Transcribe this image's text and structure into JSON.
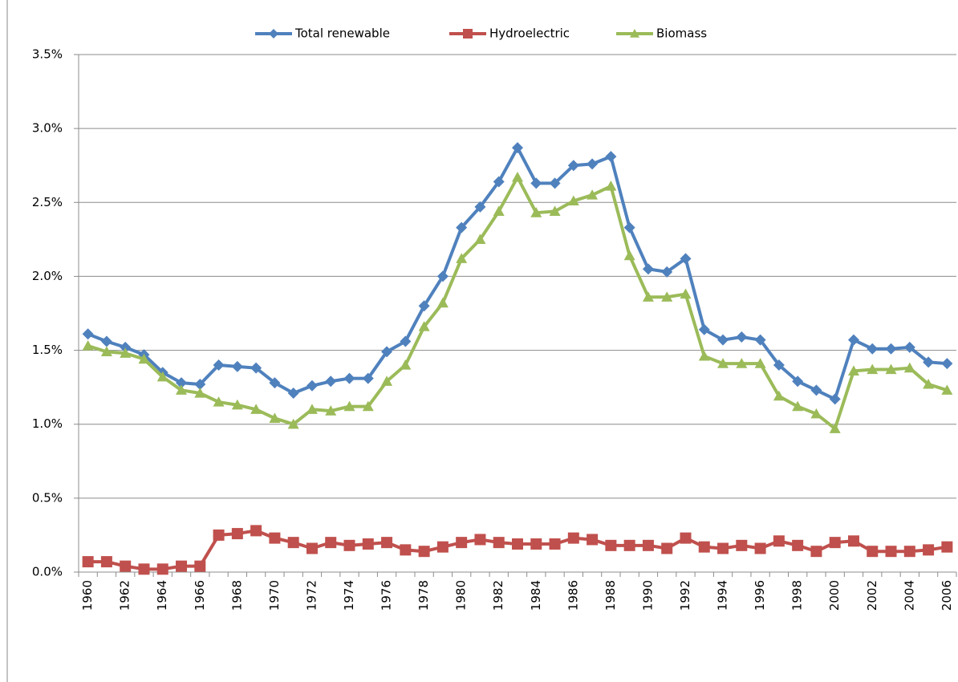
{
  "chart_data": {
    "type": "line",
    "categories": [
      "1960",
      null,
      "1962",
      null,
      "1964",
      null,
      "1966",
      null,
      "1968",
      null,
      "1970",
      null,
      "1972",
      null,
      "1974",
      null,
      "1976",
      null,
      "1978",
      null,
      "1980",
      null,
      "1982",
      null,
      "1984",
      null,
      "1986",
      null,
      "1988",
      null,
      "1990",
      null,
      "1992",
      null,
      "1994",
      null,
      "1996",
      null,
      "1998",
      null,
      "2000",
      null,
      "2002",
      null,
      "2004",
      null,
      "2006"
    ],
    "series": [
      {
        "name": "Total renewable",
        "color": "#4f81bd",
        "marker": "diamond",
        "values": [
          1.61,
          1.56,
          1.52,
          1.47,
          1.35,
          1.28,
          1.27,
          1.4,
          1.39,
          1.38,
          1.28,
          1.21,
          1.26,
          1.29,
          1.31,
          1.31,
          1.49,
          1.56,
          1.8,
          2.0,
          2.33,
          2.47,
          2.64,
          2.87,
          2.63,
          2.63,
          2.75,
          2.76,
          2.81,
          2.33,
          2.05,
          2.03,
          2.12,
          1.64,
          1.57,
          1.59,
          1.57,
          1.4,
          1.29,
          1.23,
          1.17,
          1.57,
          1.51,
          1.51,
          1.52,
          1.42,
          1.41
        ]
      },
      {
        "name": "Hydroelectric",
        "color": "#c0504d",
        "marker": "square",
        "values": [
          0.07,
          0.07,
          0.04,
          0.02,
          0.02,
          0.04,
          0.04,
          0.25,
          0.26,
          0.28,
          0.23,
          0.2,
          0.16,
          0.2,
          0.18,
          0.19,
          0.2,
          0.15,
          0.14,
          0.17,
          0.2,
          0.22,
          0.2,
          0.19,
          0.19,
          0.19,
          0.23,
          0.22,
          0.18,
          0.18,
          0.18,
          0.16,
          0.23,
          0.17,
          0.16,
          0.18,
          0.16,
          0.21,
          0.18,
          0.14,
          0.2,
          0.21,
          0.14,
          0.14,
          0.14,
          0.15,
          0.17
        ]
      },
      {
        "name": "Biomass",
        "color": "#9bbb59",
        "marker": "triangle",
        "values": [
          1.53,
          1.49,
          1.48,
          1.44,
          1.32,
          1.23,
          1.21,
          1.15,
          1.13,
          1.1,
          1.04,
          1.0,
          1.1,
          1.09,
          1.12,
          1.12,
          1.29,
          1.4,
          1.66,
          1.82,
          2.12,
          2.25,
          2.44,
          2.67,
          2.43,
          2.44,
          2.51,
          2.55,
          2.61,
          2.14,
          1.86,
          1.86,
          1.88,
          1.46,
          1.41,
          1.41,
          1.41,
          1.19,
          1.12,
          1.07,
          0.97,
          1.36,
          1.37,
          1.37,
          1.38,
          1.27,
          1.23
        ]
      }
    ],
    "ylim": [
      0,
      3.5
    ],
    "yticks": [
      {
        "value": 0,
        "label": "0.0%"
      },
      {
        "value": 0.5,
        "label": "0.5%"
      },
      {
        "value": 1.0,
        "label": "1.0%"
      },
      {
        "value": 1.5,
        "label": "1.5%"
      },
      {
        "value": 2.0,
        "label": "2.0%"
      },
      {
        "value": 2.5,
        "label": "2.5%"
      },
      {
        "value": 3.0,
        "label": "3.0%"
      },
      {
        "value": 3.5,
        "label": "3.5%"
      }
    ],
    "grid": true,
    "legend": "top"
  }
}
